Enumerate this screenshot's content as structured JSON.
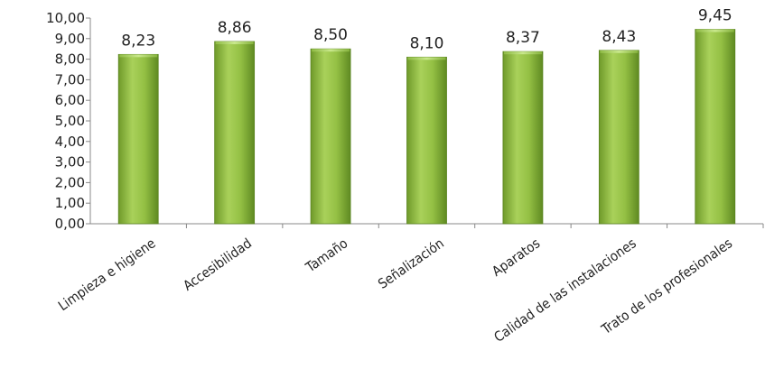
{
  "chart_data": {
    "type": "bar",
    "title": "",
    "xlabel": "",
    "ylabel": "",
    "ylim": [
      0,
      10
    ],
    "yticks": [
      "0,00",
      "1,00",
      "2,00",
      "3,00",
      "4,00",
      "5,00",
      "6,00",
      "7,00",
      "8,00",
      "9,00",
      "10,00"
    ],
    "grid": false,
    "legend": "none",
    "bar_color": "#8bb63a",
    "categories": [
      "Limpieza e higiene",
      "Accesibilidad",
      "Tamaño",
      "Señalización",
      "Aparatos",
      "Calidad de las instalaciones",
      "Trato de los profesionales"
    ],
    "values": [
      8.23,
      8.86,
      8.5,
      8.1,
      8.37,
      8.43,
      9.45
    ],
    "data_labels": [
      "8,23",
      "8,86",
      "8,50",
      "8,10",
      "8,37",
      "8,43",
      "9,45"
    ]
  }
}
